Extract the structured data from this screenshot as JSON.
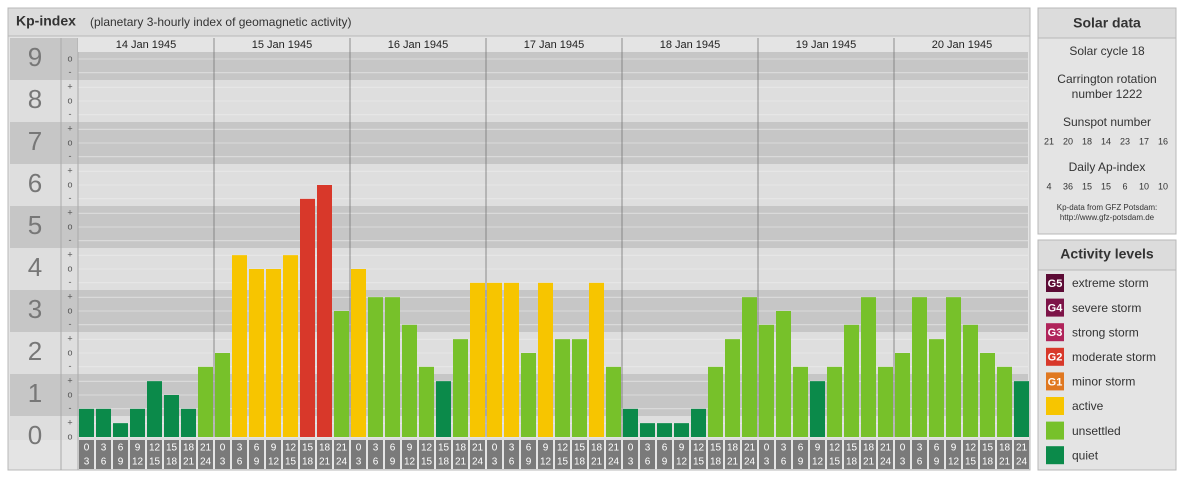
{
  "chart_data": {
    "type": "bar",
    "title": "Kp-index",
    "subtitle": "(planetary 3-hourly index of geomagnetic activity)",
    "days": [
      "14 Jan 1945",
      "15 Jan 1945",
      "16 Jan 1945",
      "17 Jan 1945",
      "18 Jan 1945",
      "19 Jan 1945",
      "20 Jan 1945"
    ],
    "slots": [
      {
        "from": "0",
        "to": "3"
      },
      {
        "from": "3",
        "to": "6"
      },
      {
        "from": "6",
        "to": "9"
      },
      {
        "from": "9",
        "to": "12"
      },
      {
        "from": "12",
        "to": "15"
      },
      {
        "from": "15",
        "to": "18"
      },
      {
        "from": "18",
        "to": "21"
      },
      {
        "from": "21",
        "to": "24"
      }
    ],
    "values": [
      0.67,
      0.67,
      0.33,
      0.67,
      1.33,
      1,
      0.67,
      1.67,
      2,
      4.33,
      4,
      4,
      4.33,
      5.67,
      6,
      3,
      4,
      3.33,
      3.33,
      2.67,
      1.67,
      1.33,
      2.33,
      3.67,
      3.67,
      3.67,
      2,
      3.67,
      2.33,
      2.33,
      3.67,
      1.67,
      0.67,
      0.33,
      0.33,
      0.33,
      0.67,
      1.67,
      2.33,
      3.33,
      2.67,
      3,
      1.67,
      1.33,
      1.67,
      2.67,
      3.33,
      1.67,
      2,
      3.33,
      2.33,
      3.33,
      2.67,
      2,
      1.67,
      1.33
    ],
    "colors": [
      "#0b8a4a",
      "#0b8a4a",
      "#0b8a4a",
      "#0b8a4a",
      "#0b8a4a",
      "#0b8a4a",
      "#0b8a4a",
      "#77c12a",
      "#77c12a",
      "#f7c500",
      "#f7c500",
      "#f7c500",
      "#f7c500",
      "#d8382a",
      "#d8382a",
      "#77c12a",
      "#f7c500",
      "#77c12a",
      "#77c12a",
      "#77c12a",
      "#77c12a",
      "#0b8a4a",
      "#77c12a",
      "#f7c500",
      "#f7c500",
      "#f7c500",
      "#77c12a",
      "#f7c500",
      "#77c12a",
      "#77c12a",
      "#f7c500",
      "#77c12a",
      "#0b8a4a",
      "#0b8a4a",
      "#0b8a4a",
      "#0b8a4a",
      "#0b8a4a",
      "#77c12a",
      "#77c12a",
      "#77c12a",
      "#77c12a",
      "#77c12a",
      "#77c12a",
      "#0b8a4a",
      "#77c12a",
      "#77c12a",
      "#77c12a",
      "#77c12a",
      "#77c12a",
      "#77c12a",
      "#77c12a",
      "#77c12a",
      "#77c12a",
      "#77c12a",
      "#77c12a",
      "#0b8a4a"
    ],
    "ylim": [
      0,
      9
    ],
    "yticks": [
      0,
      1,
      2,
      3,
      4,
      5,
      6,
      7,
      8,
      9
    ],
    "minor_yticks": [
      {
        "value": 0,
        "label": "o"
      },
      {
        "value": 0.33,
        "label": "+"
      },
      {
        "value": 0.67,
        "label": "-"
      },
      {
        "value": 1,
        "label": "o"
      },
      {
        "value": 1.33,
        "label": "+"
      },
      {
        "value": 1.67,
        "label": "-"
      },
      {
        "value": 2,
        "label": "o"
      },
      {
        "value": 2.33,
        "label": "+"
      },
      {
        "value": 2.67,
        "label": "-"
      },
      {
        "value": 3,
        "label": "o"
      },
      {
        "value": 3.33,
        "label": "+"
      },
      {
        "value": 3.67,
        "label": "-"
      },
      {
        "value": 4,
        "label": "o"
      },
      {
        "value": 4.33,
        "label": "+"
      },
      {
        "value": 4.67,
        "label": "-"
      },
      {
        "value": 5,
        "label": "o"
      },
      {
        "value": 5.33,
        "label": "+"
      },
      {
        "value": 5.67,
        "label": "-"
      },
      {
        "value": 6,
        "label": "o"
      },
      {
        "value": 6.33,
        "label": "+"
      },
      {
        "value": 6.67,
        "label": "-"
      },
      {
        "value": 7,
        "label": "o"
      },
      {
        "value": 7.33,
        "label": "+"
      },
      {
        "value": 7.67,
        "label": "-"
      },
      {
        "value": 8,
        "label": "o"
      },
      {
        "value": 8.33,
        "label": "+"
      },
      {
        "value": 8.67,
        "label": "-"
      },
      {
        "value": 9,
        "label": "o"
      }
    ],
    "levels": {
      "title": "Activity levels",
      "items": [
        {
          "badge": "G5",
          "label": "extreme storm",
          "color": "#5c0b35"
        },
        {
          "badge": "G4",
          "label": "severe storm",
          "color": "#7d1448"
        },
        {
          "badge": "G3",
          "label": "strong storm",
          "color": "#b0245a"
        },
        {
          "badge": "G2",
          "label": "moderate storm",
          "color": "#d8382a"
        },
        {
          "badge": "G1",
          "label": "minor storm",
          "color": "#e07820"
        },
        {
          "label": "active",
          "color": "#f7c500"
        },
        {
          "label": "unsettled",
          "color": "#77c12a"
        },
        {
          "label": "quiet",
          "color": "#0b8a4a"
        }
      ]
    }
  },
  "solar_data": {
    "title": "Solar data",
    "cycle": "Solar cycle 18",
    "carrington": [
      "Carrington rotation",
      "number 1222"
    ],
    "sunspot_title": "Sunspot number",
    "sunspot": [
      21,
      20,
      18,
      14,
      23,
      17,
      16
    ],
    "ap_title": "Daily Ap-index",
    "ap": [
      4,
      36,
      15,
      15,
      6,
      10,
      10
    ],
    "source": [
      "Kp-data from GFZ Potsdam:",
      "http://www.gfz-potsdam.de"
    ]
  }
}
